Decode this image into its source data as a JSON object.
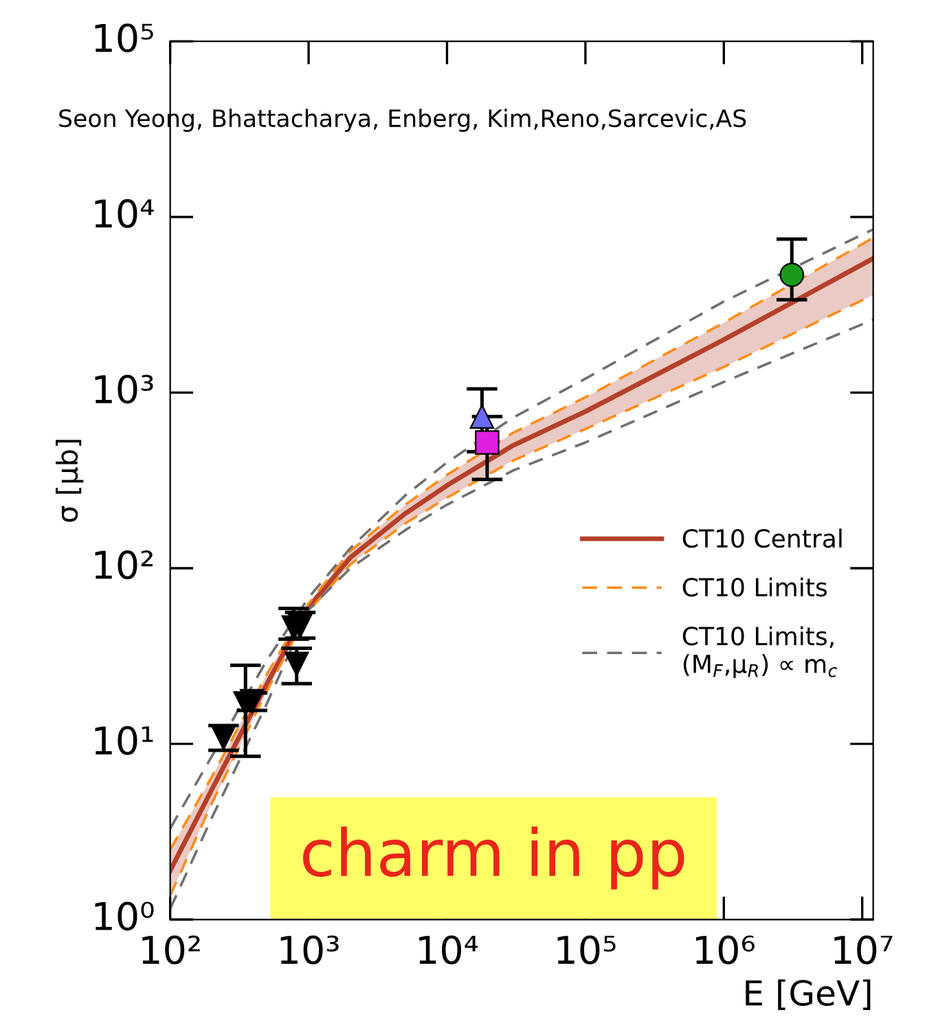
{
  "chart_data": {
    "type": "line",
    "xlabel": "E [GeV]",
    "ylabel": "σ [μb]",
    "log": "xy",
    "xlim": [
      100,
      12000000
    ],
    "ylim": [
      1,
      100000
    ],
    "xticks": [
      {
        "value": 100,
        "label": "10²"
      },
      {
        "value": 1000,
        "label": "10³"
      },
      {
        "value": 10000,
        "label": "10⁴"
      },
      {
        "value": 100000,
        "label": "10⁵"
      },
      {
        "value": 1000000,
        "label": "10⁶"
      },
      {
        "value": 10000000,
        "label": "10⁷"
      }
    ],
    "yticks": [
      {
        "value": 1,
        "label": "10⁰"
      },
      {
        "value": 10,
        "label": "10¹"
      },
      {
        "value": 100,
        "label": "10²"
      },
      {
        "value": 1000,
        "label": "10³"
      },
      {
        "value": 10000,
        "label": "10⁴"
      },
      {
        "value": 100000,
        "label": "10⁵"
      }
    ],
    "grid": false,
    "legend": "right",
    "series": [
      {
        "name": "CT10 Central",
        "color": "#b5402a",
        "line_style": "solid",
        "x": [
          100,
          200,
          500,
          1000,
          2000,
          5000,
          10000,
          30000,
          100000,
          1000000,
          12000000
        ],
        "values": [
          1.9,
          5.5,
          22,
          60,
          115,
          205,
          296,
          500,
          780,
          2000,
          5800
        ],
        "lower": [
          1.37,
          4.6,
          20,
          57,
          105,
          180,
          252,
          410,
          620,
          1400,
          3600
        ],
        "upper": [
          2.5,
          6.5,
          25,
          63,
          125,
          230,
          340,
          590,
          940,
          2500,
          7600
        ]
      },
      {
        "name": "CT10 Limits",
        "color": "#ff8c1a",
        "line_style": "dashed",
        "x": [
          100,
          200,
          500,
          1000,
          2000,
          5000,
          10000,
          30000,
          100000,
          1000000,
          12000000
        ],
        "values": [
          2.5,
          6.5,
          25,
          63,
          125,
          230,
          340,
          590,
          940,
          2500,
          7600
        ]
      },
      {
        "color": "#ff8c1a",
        "line_style": "dashed",
        "x": [
          100,
          200,
          500,
          1000,
          2000,
          5000,
          10000,
          30000,
          100000,
          1000000,
          12000000
        ],
        "values": [
          1.37,
          4.6,
          20,
          57,
          105,
          180,
          252,
          410,
          620,
          1400,
          3600
        ]
      },
      {
        "name": "CT10 Limits,\n(M$_{F}$,μ$_{R}$) ∝ m$_{c}$",
        "color": "#707070",
        "line_style": "dashed",
        "x": [
          100,
          200,
          500,
          1000,
          2000,
          5000,
          10000,
          30000,
          100000,
          1000000,
          12000000
        ],
        "values": [
          3.3,
          8.5,
          30,
          68,
          130,
          260,
          400,
          720,
          1200,
          3300,
          8500
        ]
      },
      {
        "color": "#707070",
        "line_style": "dashed",
        "x": [
          100,
          200,
          500,
          1000,
          2000,
          5000,
          10000,
          30000,
          100000,
          1000000,
          12000000
        ],
        "values": [
          1.15,
          3.8,
          17,
          58,
          100,
          165,
          230,
          360,
          520,
          1150,
          2600
        ]
      },
      {
        "type": "scatter",
        "marker": "triangle",
        "color": "#000000",
        "x": [
          243,
          350,
          390,
          780,
          870,
          820
        ],
        "values": [
          10.8,
          17,
          17.5,
          46,
          47,
          28.5
        ],
        "errors": [
          [
            9.2,
            12.7
          ],
          [
            8.5,
            28
          ],
          [
            15.5,
            19.5
          ],
          [
            39.5,
            59
          ],
          [
            40,
            56
          ],
          [
            22,
            35
          ]
        ]
      },
      {
        "type": "scatter",
        "marker": "triangle",
        "color": "#6a6af0",
        "x": [
          17900
        ],
        "values": [
          730
        ],
        "errors": [
          [
            460,
            1050
          ]
        ]
      },
      {
        "type": "scatter",
        "marker": "square",
        "color": "#e020e0",
        "x": [
          19500
        ],
        "values": [
          520
        ],
        "errors": [
          [
            320,
            730
          ]
        ]
      },
      {
        "type": "scatter",
        "marker": "circle",
        "color": "#1a9a1a",
        "x": [
          3100000
        ],
        "values": [
          4680
        ],
        "errors": [
          [
            3380,
            7470
          ]
        ]
      }
    ],
    "annotations": [
      "Seon Yeong, Bhattacharya, Enberg, Kim,Reno,Sarcevic,AS",
      "charm in pp"
    ]
  }
}
